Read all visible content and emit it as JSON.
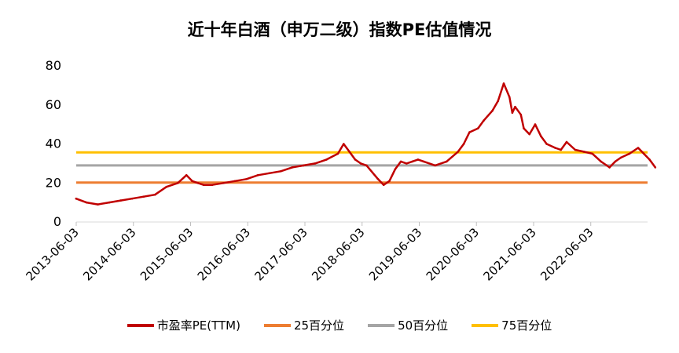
{
  "chart_data": {
    "type": "line",
    "title": "近十年白酒（申万二级）指数PE估值情况",
    "xlabel": "",
    "ylabel": "",
    "ylim": [
      0,
      80
    ],
    "yticks": [
      "0",
      "20",
      "40",
      "60",
      "80"
    ],
    "x_range": [
      "2013-06-03",
      "2023-05-31"
    ],
    "xticks": [
      "2013-06-03",
      "2014-06-03",
      "2015-06-03",
      "2016-06-03",
      "2017-06-03",
      "2018-06-03",
      "2019-06-03",
      "2020-06-03",
      "2021-06-03",
      "2022-06-03"
    ],
    "grid": false,
    "legend_position": "bottom",
    "series": [
      {
        "name": "市盈率PE(TTM)",
        "color": "#c00000",
        "type": "line",
        "x": [
          2013.42,
          2013.6,
          2013.8,
          2014.0,
          2014.2,
          2014.4,
          2014.6,
          2014.8,
          2015.0,
          2015.2,
          2015.35,
          2015.45,
          2015.55,
          2015.65,
          2015.8,
          2016.0,
          2016.2,
          2016.4,
          2016.6,
          2016.8,
          2017.0,
          2017.2,
          2017.4,
          2017.6,
          2017.8,
          2018.0,
          2018.1,
          2018.2,
          2018.3,
          2018.4,
          2018.5,
          2018.7,
          2018.8,
          2018.9,
          2019.0,
          2019.1,
          2019.2,
          2019.3,
          2019.4,
          2019.5,
          2019.7,
          2019.9,
          2020.1,
          2020.2,
          2020.3,
          2020.45,
          2020.55,
          2020.7,
          2020.8,
          2020.9,
          2021.0,
          2021.05,
          2021.1,
          2021.2,
          2021.25,
          2021.35,
          2021.45,
          2021.55,
          2021.65,
          2021.8,
          2021.9,
          2022.0,
          2022.15,
          2022.3,
          2022.45,
          2022.6,
          2022.75,
          2022.85,
          2022.95,
          2023.1,
          2023.25,
          2023.35,
          2023.45,
          2023.55
        ],
        "values": [
          12,
          10,
          9,
          10,
          11,
          12,
          13,
          14,
          18,
          20,
          24,
          21,
          20,
          19,
          19,
          20,
          21,
          22,
          24,
          25,
          26,
          28,
          29,
          30,
          32,
          35,
          40,
          36,
          32,
          30,
          29,
          22,
          19,
          21,
          27,
          31,
          30,
          31,
          32,
          31,
          29,
          31,
          36,
          40,
          46,
          48,
          52,
          57,
          62,
          71,
          64,
          56,
          59,
          55,
          48,
          45,
          50,
          44,
          40,
          38,
          37,
          41,
          37,
          36,
          35,
          31,
          28,
          31,
          33,
          35,
          38,
          35,
          32,
          28
        ]
      },
      {
        "name": "25百分位",
        "color": "#ed7d31",
        "type": "hline",
        "value": 20.2
      },
      {
        "name": "50百分位",
        "color": "#a5a5a5",
        "type": "hline",
        "value": 29.0
      },
      {
        "name": "75百分位",
        "color": "#ffc000",
        "type": "hline",
        "value": 35.7
      }
    ]
  }
}
